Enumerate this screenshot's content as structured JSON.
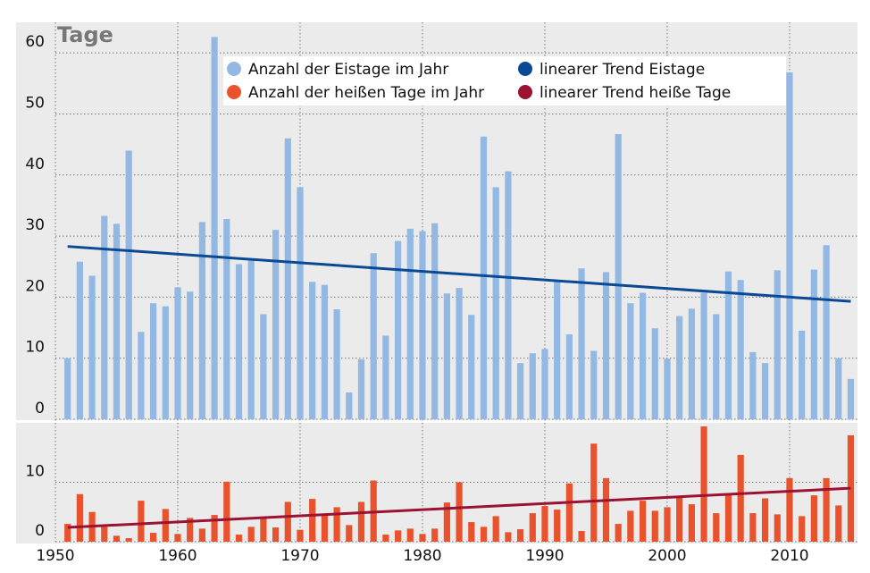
{
  "chart_data": [
    {
      "type": "bar",
      "title": "Tage",
      "x": [
        1951,
        1952,
        1953,
        1954,
        1955,
        1956,
        1957,
        1958,
        1959,
        1960,
        1961,
        1962,
        1963,
        1964,
        1965,
        1966,
        1967,
        1968,
        1969,
        1970,
        1971,
        1972,
        1973,
        1974,
        1975,
        1976,
        1977,
        1978,
        1979,
        1980,
        1981,
        1982,
        1983,
        1984,
        1985,
        1986,
        1987,
        1988,
        1989,
        1990,
        1991,
        1992,
        1993,
        1994,
        1995,
        1996,
        1997,
        1998,
        1999,
        2000,
        2001,
        2002,
        2003,
        2004,
        2005,
        2006,
        2007,
        2008,
        2009,
        2010,
        2011,
        2012,
        2013,
        2014,
        2015
      ],
      "ylim": [
        0,
        65
      ],
      "yticks": [
        0,
        10,
        20,
        30,
        40,
        50,
        60
      ],
      "grid": true,
      "series": [
        {
          "name": "Anzahl der Eistage im Jahr",
          "color": "#93b8e3",
          "values": [
            10,
            25.8,
            23.5,
            33.3,
            32,
            44,
            14.3,
            19,
            18.5,
            21.6,
            20.9,
            32.3,
            62.6,
            32.8,
            25.4,
            26.1,
            17.2,
            31,
            46,
            38,
            22.5,
            22,
            18,
            4.4,
            9.8,
            27.2,
            13.7,
            29.2,
            31.2,
            30.8,
            32.1,
            20.6,
            21.5,
            17.1,
            46.3,
            38,
            40.6,
            9.2,
            10.8,
            11.5,
            22.5,
            13.9,
            24.7,
            11.2,
            24.1,
            46.7,
            19,
            20.7,
            14.9,
            9.9,
            16.9,
            18.1,
            20.7,
            17.2,
            24.2,
            22.8,
            11,
            9.2,
            24.4,
            56.8,
            14.5,
            24.5,
            28.5,
            10,
            6.6
          ]
        },
        {
          "name": "linearer Trend Eistage",
          "type": "line",
          "color": "#0a4a94",
          "x": [
            1951,
            2015
          ],
          "values": [
            28.3,
            19.3
          ]
        }
      ]
    },
    {
      "type": "bar",
      "x": [
        1951,
        1952,
        1953,
        1954,
        1955,
        1956,
        1957,
        1958,
        1959,
        1960,
        1961,
        1962,
        1963,
        1964,
        1965,
        1966,
        1967,
        1968,
        1969,
        1970,
        1971,
        1972,
        1973,
        1974,
        1975,
        1976,
        1977,
        1978,
        1979,
        1980,
        1981,
        1982,
        1983,
        1984,
        1985,
        1986,
        1987,
        1988,
        1989,
        1990,
        1991,
        1992,
        1993,
        1994,
        1995,
        1996,
        1997,
        1998,
        1999,
        2000,
        2001,
        2002,
        2003,
        2004,
        2005,
        2006,
        2007,
        2008,
        2009,
        2010,
        2011,
        2012,
        2013,
        2014,
        2015
      ],
      "xlim": [
        1950,
        2015.55
      ],
      "xticks": [
        1950,
        1960,
        1970,
        1980,
        1990,
        2000,
        2010
      ],
      "ylim": [
        0,
        20
      ],
      "yticks": [
        0,
        10
      ],
      "grid": true,
      "series": [
        {
          "name": "Anzahl der heißen Tage im Jahr",
          "color": "#e8532d",
          "values": [
            3,
            8,
            5,
            2.5,
            1,
            0.6,
            6.9,
            1.5,
            5.5,
            1.3,
            4,
            2.2,
            4.5,
            10.1,
            1.2,
            2.5,
            4,
            2.4,
            6.7,
            2,
            7.2,
            4.6,
            5.8,
            2.8,
            6.7,
            10.3,
            1.2,
            1.9,
            2.2,
            1.3,
            2.2,
            6.6,
            10,
            3.3,
            2.5,
            4.3,
            1.6,
            2.1,
            4.8,
            6,
            5.4,
            9.8,
            1.8,
            16.5,
            10.7,
            3,
            5.2,
            6.9,
            5.2,
            5.8,
            7.5,
            6.3,
            19.4,
            4.8,
            7.8,
            14.6,
            4.8,
            7.3,
            4.6,
            10.7,
            4.3,
            7.8,
            10.7,
            6.1,
            17.9
          ]
        },
        {
          "name": "linearer Trend heiße Tage",
          "type": "line",
          "color": "#9b1233",
          "x": [
            1951,
            2015
          ],
          "values": [
            2.4,
            9.0
          ]
        }
      ]
    }
  ]
}
